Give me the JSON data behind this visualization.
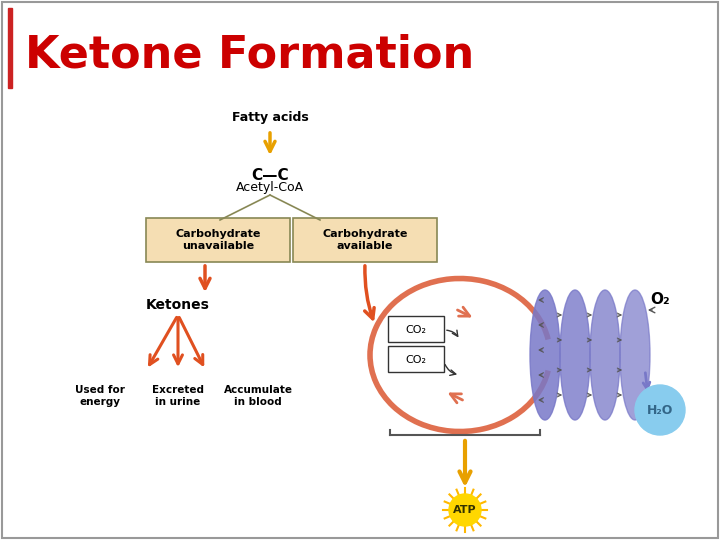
{
  "title": "Ketone Formation",
  "title_color": "#cc0000",
  "title_fontsize": 32,
  "bg_color": "#ffffff",
  "border_color": "#999999",
  "fatty_acids_label": "Fatty acids",
  "acetyl_coa_label": "C—C\nAcetyl-CoA",
  "carb_unavail_label": "Carbohydrate\nunavailable",
  "carb_avail_label": "Carbohydrate\navailable",
  "ketones_label": "Ketones",
  "used_for_energy": "Used for\nenergy",
  "excreted_urine": "Excreted\nin urine",
  "accumulate_blood": "Accumulate\nin blood",
  "co2_label": "CO₂",
  "o2_label": "O₂",
  "h2o_label": "H₂O",
  "atp_label": "ATP",
  "arrow_color_orange": "#E8A000",
  "arrow_color_red": "#E05020",
  "circle_color": "#E07050",
  "ellipse_color": "#7878C8",
  "box_fill": "#F5DEB3",
  "box_edge": "#888855",
  "co2_box_fill": "#ffffff",
  "co2_box_edge": "#333333",
  "h2o_fill": "#88CCEE",
  "h2o_text": "#336688",
  "atp_fill": "#FFD700",
  "atp_ray_color": "#FFB800"
}
